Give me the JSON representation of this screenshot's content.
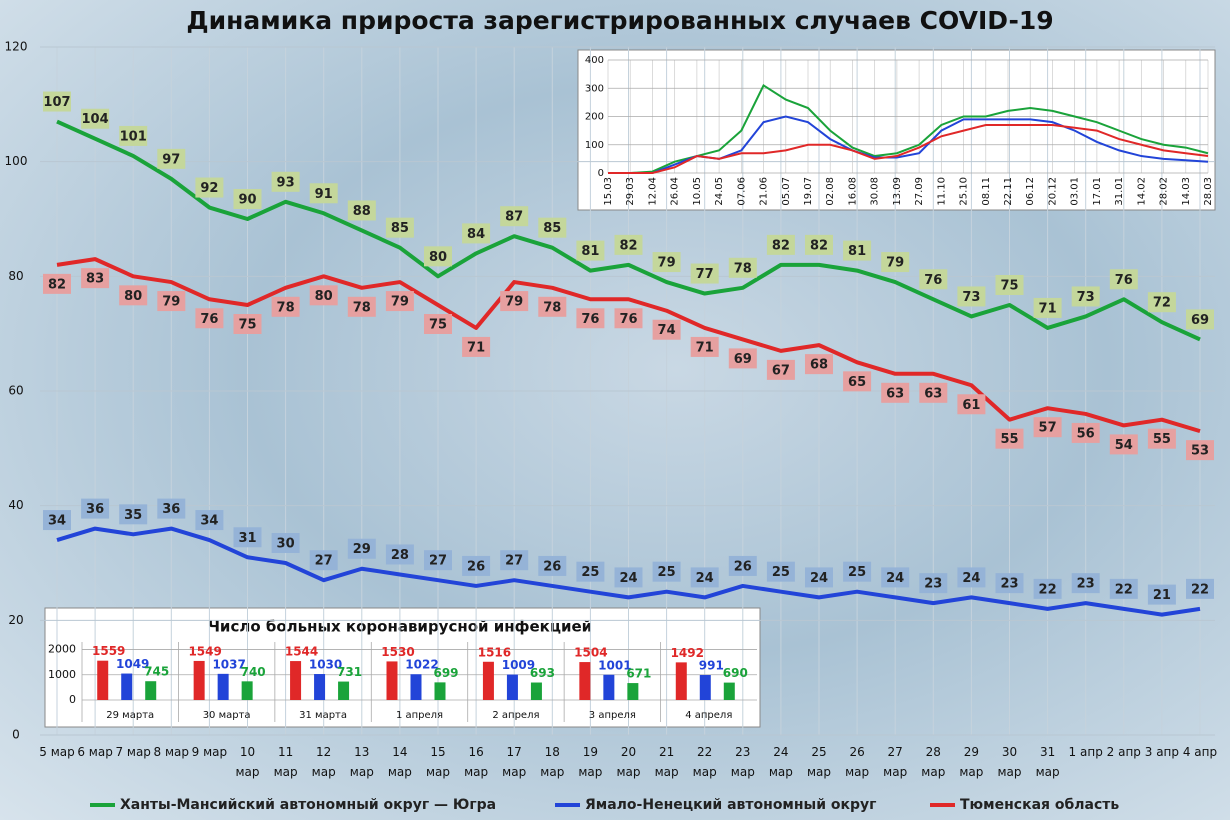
{
  "chart_data": [
    {
      "type": "line",
      "title": "Динамика прироста зарегистрированных случаев COVID-19",
      "categories": [
        "5 мар",
        "6 мар",
        "7 мар",
        "8 мар",
        "9 мар",
        "10 мар",
        "11 мар",
        "12 мар",
        "13 мар",
        "14 мар",
        "15 мар",
        "16 мар",
        "17 мар",
        "18 мар",
        "19 мар",
        "20 мар",
        "21 мар",
        "22 мар",
        "23 мар",
        "24 мар",
        "25 мар",
        "26 мар",
        "27 мар",
        "28 мар",
        "29 мар",
        "30 мар",
        "31 мар",
        "1 апр",
        "2 апр",
        "3 апр",
        "4 апр"
      ],
      "series": [
        {
          "name": "Ханты-Мансийский автономный округ — Югра",
          "color": "#1aa33a",
          "values": [
            107,
            104,
            101,
            97,
            92,
            90,
            93,
            91,
            88,
            85,
            80,
            84,
            87,
            85,
            81,
            82,
            79,
            77,
            78,
            82,
            82,
            81,
            79,
            76,
            73,
            75,
            71,
            73,
            76,
            72,
            69
          ]
        },
        {
          "name": "Ямало-Ненецкий автономный округ",
          "color": "#2244d8",
          "values": [
            34,
            36,
            35,
            36,
            34,
            31,
            30,
            27,
            29,
            28,
            27,
            26,
            27,
            26,
            25,
            24,
            25,
            24,
            26,
            25,
            24,
            25,
            24,
            23,
            24,
            23,
            22,
            23,
            22,
            21,
            22
          ]
        },
        {
          "name": "Тюменская область",
          "color": "#e02828",
          "values": [
            82,
            83,
            80,
            79,
            76,
            75,
            78,
            80,
            78,
            79,
            75,
            71,
            79,
            78,
            76,
            76,
            74,
            71,
            69,
            67,
            68,
            65,
            63,
            63,
            61,
            55,
            57,
            56,
            54,
            55,
            53
          ]
        }
      ],
      "ylim": [
        0,
        120
      ],
      "yticks": [
        0,
        20,
        40,
        60,
        80,
        100,
        120
      ],
      "grid": true,
      "legend": "bottom"
    },
    {
      "type": "line",
      "categories": [
        "15.03",
        "29.03",
        "12.04",
        "26.04",
        "10.05",
        "24.05",
        "07.06",
        "21.06",
        "05.07",
        "19.07",
        "02.08",
        "16.08",
        "30.08",
        "13.09",
        "27.09",
        "11.10",
        "25.10",
        "08.11",
        "22.11",
        "06.12",
        "20.12",
        "03.01",
        "17.01",
        "31.01",
        "14.02",
        "28.02",
        "14.03",
        "28.03"
      ],
      "series": [
        {
          "color": "#1aa33a",
          "values": [
            0,
            0,
            5,
            40,
            60,
            80,
            150,
            310,
            260,
            230,
            150,
            90,
            60,
            70,
            100,
            170,
            200,
            200,
            220,
            230,
            220,
            200,
            180,
            150,
            120,
            100,
            90,
            70
          ]
        },
        {
          "color": "#2244d8",
          "values": [
            0,
            0,
            0,
            30,
            60,
            50,
            80,
            180,
            200,
            180,
            120,
            80,
            55,
            55,
            70,
            150,
            190,
            190,
            190,
            190,
            180,
            150,
            110,
            80,
            60,
            50,
            45,
            40
          ]
        },
        {
          "color": "#e02828",
          "values": [
            0,
            0,
            0,
            20,
            60,
            50,
            70,
            70,
            80,
            100,
            100,
            80,
            50,
            60,
            90,
            130,
            150,
            170,
            170,
            170,
            170,
            160,
            150,
            120,
            100,
            80,
            70,
            60
          ]
        }
      ],
      "ylim": [
        0,
        400
      ],
      "yticks": [
        0,
        100,
        200,
        300,
        400
      ],
      "grid": true
    },
    {
      "type": "bar",
      "title": "Число больных коронавирусной  инфекцией",
      "categories": [
        "29 марта",
        "30 марта",
        "31 марта",
        "1 апреля",
        "2 апреля",
        "3 апреля",
        "4 апреля"
      ],
      "series": [
        {
          "color": "#e02828",
          "values": [
            1559,
            1549,
            1544,
            1530,
            1516,
            1504,
            1492
          ]
        },
        {
          "color": "#2244d8",
          "values": [
            1049,
            1037,
            1030,
            1022,
            1009,
            1001,
            991
          ]
        },
        {
          "color": "#1aa33a",
          "values": [
            745,
            740,
            731,
            699,
            693,
            671,
            690
          ]
        }
      ],
      "ylim": [
        0,
        2300
      ],
      "yticks": [
        0,
        1000,
        2000
      ],
      "grid": true
    }
  ]
}
